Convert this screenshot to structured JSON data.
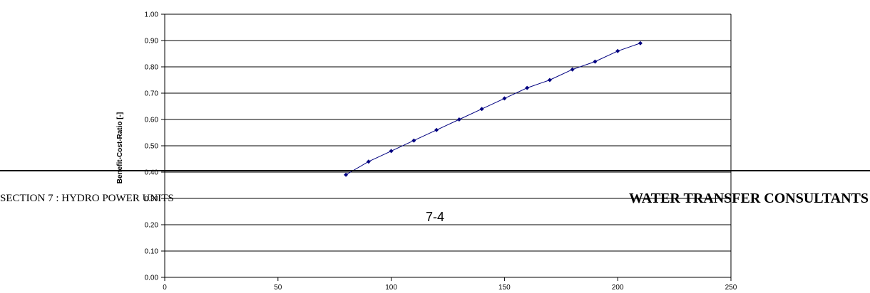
{
  "chart_data": {
    "type": "line",
    "ylabel": "Benefit-Cost-Ratio [-]",
    "xlabel": "",
    "xlim": [
      0,
      250
    ],
    "ylim": [
      0.0,
      1.0
    ],
    "x_ticks": [
      "0",
      "50",
      "100",
      "150",
      "200",
      "250"
    ],
    "y_ticks": [
      "0.00",
      "0.10",
      "0.20",
      "0.30",
      "0.40",
      "0.50",
      "0.60",
      "0.70",
      "0.80",
      "0.90",
      "1.00"
    ],
    "grid": "horizontal",
    "legend": "none",
    "series": [
      {
        "color": "#000080",
        "x": [
          80,
          90,
          100,
          110,
          120,
          130,
          140,
          150,
          160,
          170,
          180,
          190,
          200,
          210
        ],
        "y": [
          0.39,
          0.44,
          0.48,
          0.52,
          0.56,
          0.6,
          0.64,
          0.68,
          0.72,
          0.75,
          0.79,
          0.82,
          0.86,
          0.89
        ]
      }
    ]
  },
  "footer": {
    "section": "SECTION 7 : HYDRO POWER UNITS",
    "company": "WATER TRANSFER CONSULTANTS",
    "page": "7-4"
  }
}
